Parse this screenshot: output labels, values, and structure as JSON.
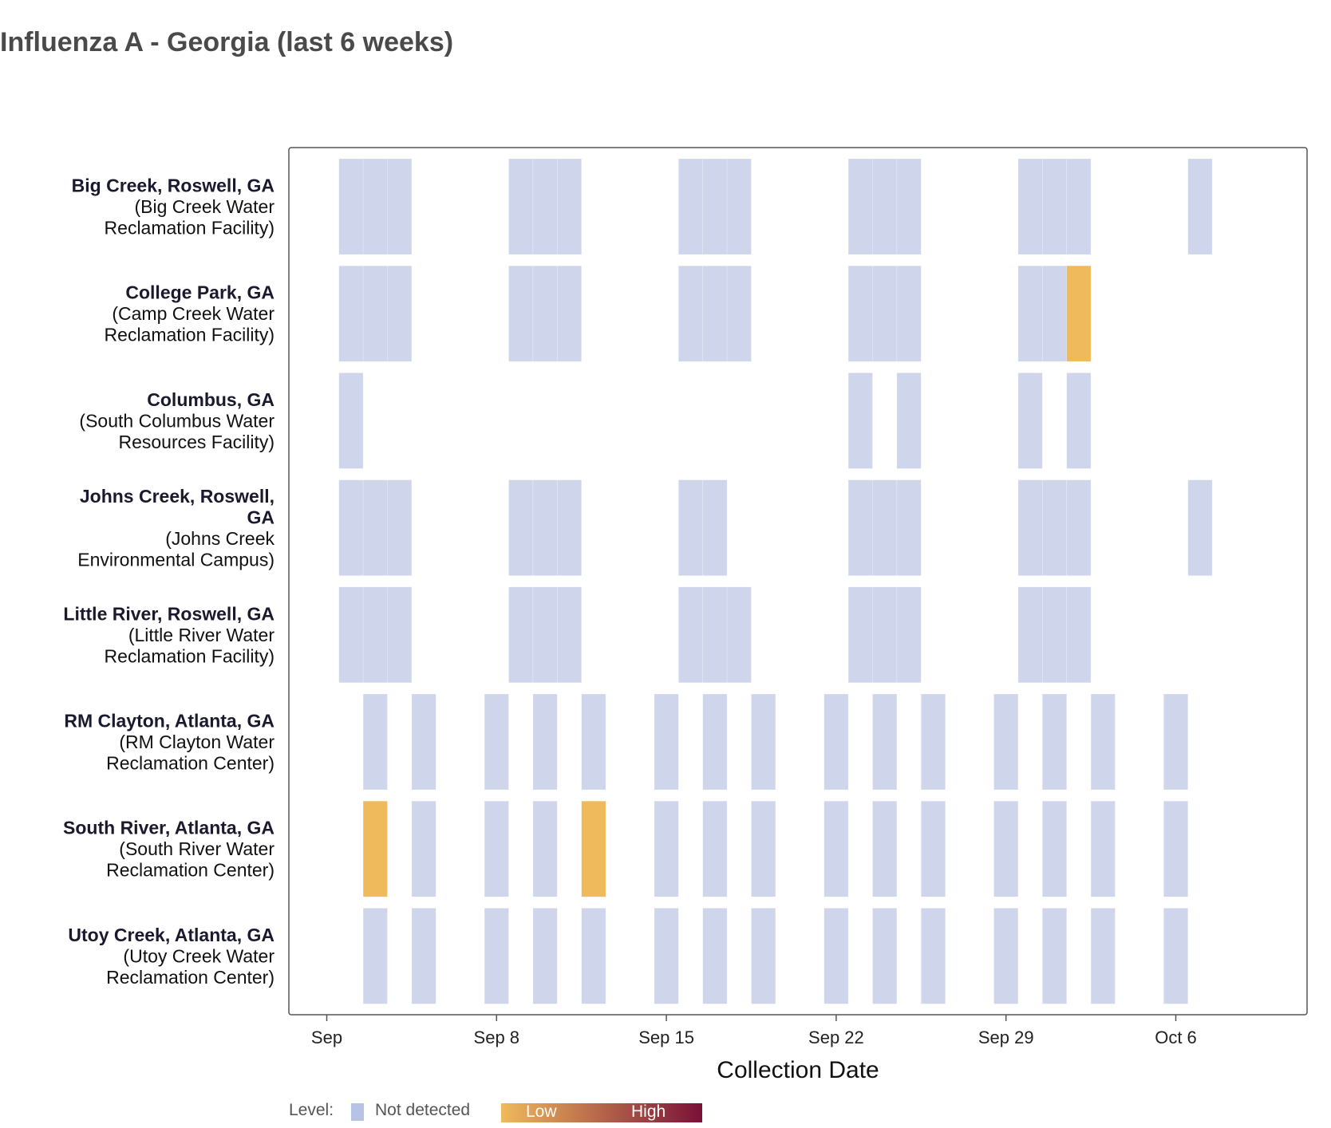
{
  "title": "Influenza A - Georgia (last 6 weeks)",
  "chart_data": {
    "type": "heatmap",
    "title": "Influenza A - Georgia (last 6 weeks)",
    "xlabel": "Collection Date",
    "ylabel": "",
    "x_ticks": [
      {
        "label": "Sep",
        "date": "2024-09-01"
      },
      {
        "label": "Sep 8",
        "date": "2024-09-08"
      },
      {
        "label": "Sep 15",
        "date": "2024-09-15"
      },
      {
        "label": "Sep 22",
        "date": "2024-09-22"
      },
      {
        "label": "Sep 29",
        "date": "2024-09-29"
      },
      {
        "label": "Oct 6",
        "date": "2024-10-06"
      }
    ],
    "x_range": [
      "2024-08-31",
      "2024-10-11"
    ],
    "colors": {
      "not_detected": "#cfd6ec",
      "low": "#efba5c",
      "high": "#7a1038"
    },
    "legend": {
      "title": "Level:",
      "not_detected_label": "Not detected",
      "low_label": "Low",
      "high_label": "High"
    },
    "sites": [
      {
        "name": "Big Creek, Roswell, GA",
        "name_lines": [
          "Big Creek, Roswell, GA"
        ],
        "facility_lines": [
          "(Big Creek Water",
          "Reclamation Facility)"
        ],
        "samples": [
          {
            "date": "2024-09-02",
            "level": "not_detected"
          },
          {
            "date": "2024-09-03",
            "level": "not_detected"
          },
          {
            "date": "2024-09-04",
            "level": "not_detected"
          },
          {
            "date": "2024-09-09",
            "level": "not_detected"
          },
          {
            "date": "2024-09-10",
            "level": "not_detected"
          },
          {
            "date": "2024-09-11",
            "level": "not_detected"
          },
          {
            "date": "2024-09-16",
            "level": "not_detected"
          },
          {
            "date": "2024-09-17",
            "level": "not_detected"
          },
          {
            "date": "2024-09-18",
            "level": "not_detected"
          },
          {
            "date": "2024-09-23",
            "level": "not_detected"
          },
          {
            "date": "2024-09-24",
            "level": "not_detected"
          },
          {
            "date": "2024-09-25",
            "level": "not_detected"
          },
          {
            "date": "2024-09-30",
            "level": "not_detected"
          },
          {
            "date": "2024-10-01",
            "level": "not_detected"
          },
          {
            "date": "2024-10-02",
            "level": "not_detected"
          },
          {
            "date": "2024-10-07",
            "level": "not_detected"
          }
        ]
      },
      {
        "name": "College Park, GA",
        "name_lines": [
          "College Park, GA"
        ],
        "facility_lines": [
          "(Camp Creek Water",
          "Reclamation Facility)"
        ],
        "samples": [
          {
            "date": "2024-09-02",
            "level": "not_detected"
          },
          {
            "date": "2024-09-03",
            "level": "not_detected"
          },
          {
            "date": "2024-09-04",
            "level": "not_detected"
          },
          {
            "date": "2024-09-09",
            "level": "not_detected"
          },
          {
            "date": "2024-09-10",
            "level": "not_detected"
          },
          {
            "date": "2024-09-11",
            "level": "not_detected"
          },
          {
            "date": "2024-09-16",
            "level": "not_detected"
          },
          {
            "date": "2024-09-17",
            "level": "not_detected"
          },
          {
            "date": "2024-09-18",
            "level": "not_detected"
          },
          {
            "date": "2024-09-23",
            "level": "not_detected"
          },
          {
            "date": "2024-09-24",
            "level": "not_detected"
          },
          {
            "date": "2024-09-25",
            "level": "not_detected"
          },
          {
            "date": "2024-09-30",
            "level": "not_detected"
          },
          {
            "date": "2024-10-01",
            "level": "not_detected"
          },
          {
            "date": "2024-10-02",
            "level": "low"
          }
        ]
      },
      {
        "name": "Columbus, GA",
        "name_lines": [
          "Columbus, GA"
        ],
        "facility_lines": [
          "(South Columbus Water",
          "Resources Facility)"
        ],
        "samples": [
          {
            "date": "2024-09-02",
            "level": "not_detected"
          },
          {
            "date": "2024-09-23",
            "level": "not_detected"
          },
          {
            "date": "2024-09-25",
            "level": "not_detected"
          },
          {
            "date": "2024-09-30",
            "level": "not_detected"
          },
          {
            "date": "2024-10-02",
            "level": "not_detected"
          }
        ]
      },
      {
        "name": "Johns Creek, Roswell, GA",
        "name_lines": [
          "Johns Creek, Roswell,",
          "GA"
        ],
        "facility_lines": [
          "(Johns Creek",
          "Environmental Campus)"
        ],
        "samples": [
          {
            "date": "2024-09-02",
            "level": "not_detected"
          },
          {
            "date": "2024-09-03",
            "level": "not_detected"
          },
          {
            "date": "2024-09-04",
            "level": "not_detected"
          },
          {
            "date": "2024-09-09",
            "level": "not_detected"
          },
          {
            "date": "2024-09-10",
            "level": "not_detected"
          },
          {
            "date": "2024-09-11",
            "level": "not_detected"
          },
          {
            "date": "2024-09-16",
            "level": "not_detected"
          },
          {
            "date": "2024-09-17",
            "level": "not_detected"
          },
          {
            "date": "2024-09-23",
            "level": "not_detected"
          },
          {
            "date": "2024-09-24",
            "level": "not_detected"
          },
          {
            "date": "2024-09-25",
            "level": "not_detected"
          },
          {
            "date": "2024-09-30",
            "level": "not_detected"
          },
          {
            "date": "2024-10-01",
            "level": "not_detected"
          },
          {
            "date": "2024-10-02",
            "level": "not_detected"
          },
          {
            "date": "2024-10-07",
            "level": "not_detected"
          }
        ]
      },
      {
        "name": "Little River, Roswell, GA",
        "name_lines": [
          "Little River, Roswell, GA"
        ],
        "facility_lines": [
          "(Little River Water",
          "Reclamation Facility)"
        ],
        "samples": [
          {
            "date": "2024-09-02",
            "level": "not_detected"
          },
          {
            "date": "2024-09-03",
            "level": "not_detected"
          },
          {
            "date": "2024-09-04",
            "level": "not_detected"
          },
          {
            "date": "2024-09-09",
            "level": "not_detected"
          },
          {
            "date": "2024-09-10",
            "level": "not_detected"
          },
          {
            "date": "2024-09-11",
            "level": "not_detected"
          },
          {
            "date": "2024-09-16",
            "level": "not_detected"
          },
          {
            "date": "2024-09-17",
            "level": "not_detected"
          },
          {
            "date": "2024-09-18",
            "level": "not_detected"
          },
          {
            "date": "2024-09-23",
            "level": "not_detected"
          },
          {
            "date": "2024-09-24",
            "level": "not_detected"
          },
          {
            "date": "2024-09-25",
            "level": "not_detected"
          },
          {
            "date": "2024-09-30",
            "level": "not_detected"
          },
          {
            "date": "2024-10-01",
            "level": "not_detected"
          },
          {
            "date": "2024-10-02",
            "level": "not_detected"
          }
        ]
      },
      {
        "name": "RM Clayton, Atlanta, GA",
        "name_lines": [
          "RM Clayton, Atlanta, GA"
        ],
        "facility_lines": [
          "(RM Clayton Water",
          "Reclamation Center)"
        ],
        "samples": [
          {
            "date": "2024-09-03",
            "level": "not_detected"
          },
          {
            "date": "2024-09-05",
            "level": "not_detected"
          },
          {
            "date": "2024-09-08",
            "level": "not_detected"
          },
          {
            "date": "2024-09-10",
            "level": "not_detected"
          },
          {
            "date": "2024-09-12",
            "level": "not_detected"
          },
          {
            "date": "2024-09-15",
            "level": "not_detected"
          },
          {
            "date": "2024-09-17",
            "level": "not_detected"
          },
          {
            "date": "2024-09-19",
            "level": "not_detected"
          },
          {
            "date": "2024-09-22",
            "level": "not_detected"
          },
          {
            "date": "2024-09-24",
            "level": "not_detected"
          },
          {
            "date": "2024-09-26",
            "level": "not_detected"
          },
          {
            "date": "2024-09-29",
            "level": "not_detected"
          },
          {
            "date": "2024-10-01",
            "level": "not_detected"
          },
          {
            "date": "2024-10-03",
            "level": "not_detected"
          },
          {
            "date": "2024-10-06",
            "level": "not_detected"
          }
        ]
      },
      {
        "name": "South River, Atlanta, GA",
        "name_lines": [
          "South River, Atlanta, GA"
        ],
        "facility_lines": [
          "(South River Water",
          "Reclamation Center)"
        ],
        "samples": [
          {
            "date": "2024-09-03",
            "level": "low"
          },
          {
            "date": "2024-09-05",
            "level": "not_detected"
          },
          {
            "date": "2024-09-08",
            "level": "not_detected"
          },
          {
            "date": "2024-09-10",
            "level": "not_detected"
          },
          {
            "date": "2024-09-12",
            "level": "low"
          },
          {
            "date": "2024-09-15",
            "level": "not_detected"
          },
          {
            "date": "2024-09-17",
            "level": "not_detected"
          },
          {
            "date": "2024-09-19",
            "level": "not_detected"
          },
          {
            "date": "2024-09-22",
            "level": "not_detected"
          },
          {
            "date": "2024-09-24",
            "level": "not_detected"
          },
          {
            "date": "2024-09-26",
            "level": "not_detected"
          },
          {
            "date": "2024-09-29",
            "level": "not_detected"
          },
          {
            "date": "2024-10-01",
            "level": "not_detected"
          },
          {
            "date": "2024-10-03",
            "level": "not_detected"
          },
          {
            "date": "2024-10-06",
            "level": "not_detected"
          }
        ]
      },
      {
        "name": "Utoy Creek, Atlanta, GA",
        "name_lines": [
          "Utoy Creek, Atlanta, GA"
        ],
        "facility_lines": [
          "(Utoy Creek Water",
          "Reclamation Center)"
        ],
        "samples": [
          {
            "date": "2024-09-03",
            "level": "not_detected"
          },
          {
            "date": "2024-09-05",
            "level": "not_detected"
          },
          {
            "date": "2024-09-08",
            "level": "not_detected"
          },
          {
            "date": "2024-09-10",
            "level": "not_detected"
          },
          {
            "date": "2024-09-12",
            "level": "not_detected"
          },
          {
            "date": "2024-09-15",
            "level": "not_detected"
          },
          {
            "date": "2024-09-17",
            "level": "not_detected"
          },
          {
            "date": "2024-09-19",
            "level": "not_detected"
          },
          {
            "date": "2024-09-22",
            "level": "not_detected"
          },
          {
            "date": "2024-09-24",
            "level": "not_detected"
          },
          {
            "date": "2024-09-26",
            "level": "not_detected"
          },
          {
            "date": "2024-09-29",
            "level": "not_detected"
          },
          {
            "date": "2024-10-01",
            "level": "not_detected"
          },
          {
            "date": "2024-10-03",
            "level": "not_detected"
          },
          {
            "date": "2024-10-06",
            "level": "not_detected"
          }
        ]
      }
    ]
  }
}
